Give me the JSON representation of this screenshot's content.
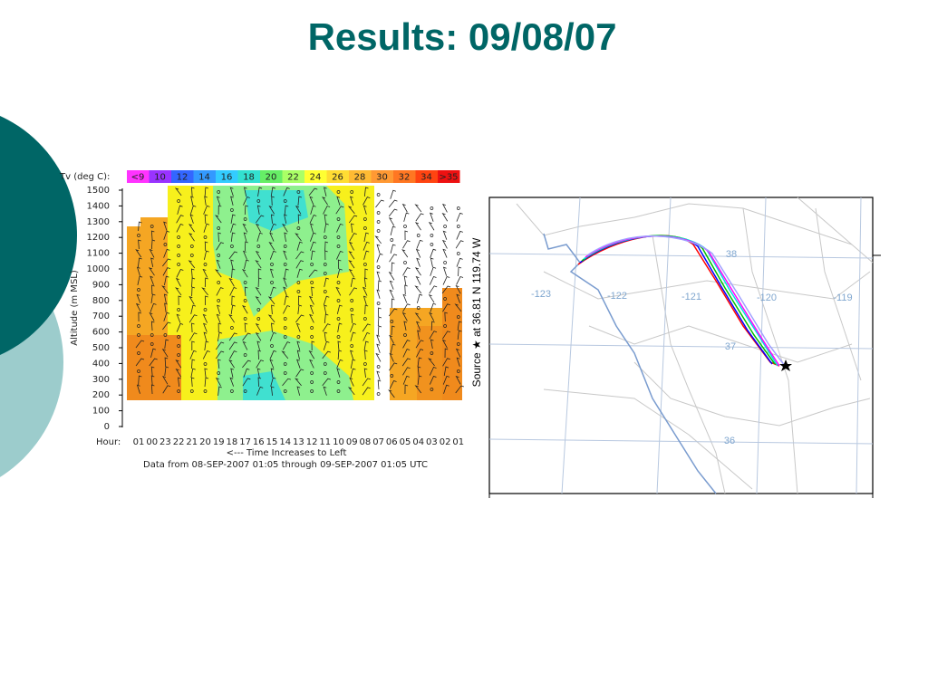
{
  "title": "Results: 09/08/07",
  "profiler": {
    "legend_title": "Tv (deg C):",
    "legend_labels": [
      "<9",
      "10",
      "12",
      "14",
      "16",
      "18",
      "20",
      "22",
      "24",
      "26",
      "28",
      "30",
      "32",
      "34",
      ">35"
    ],
    "y_label": "Altitude (m MSL)",
    "y_ticks": [
      "1500",
      "1400",
      "1300",
      "1200",
      "1100",
      "1000",
      "900",
      "800",
      "700",
      "600",
      "500",
      "400",
      "300",
      "200",
      "100",
      "0"
    ],
    "hour_label": "Hour:",
    "hours": [
      "01",
      "00",
      "23",
      "22",
      "21",
      "20",
      "19",
      "18",
      "17",
      "16",
      "15",
      "14",
      "13",
      "12",
      "11",
      "10",
      "09",
      "08",
      "07",
      "06",
      "05",
      "04",
      "03",
      "02",
      "01"
    ],
    "x_caption": "<--- Time Increases to Left",
    "data_caption": "Data from 08-SEP-2007 01:05 through 09-SEP-2007 01:05 UTC"
  },
  "map": {
    "side_label": "Source ★ at 36.81 N 119.74 W",
    "lon_labels": [
      "-123",
      "-122",
      "-121",
      "-120",
      "-119"
    ],
    "lat_labels": [
      "38",
      "37",
      "36"
    ]
  }
}
